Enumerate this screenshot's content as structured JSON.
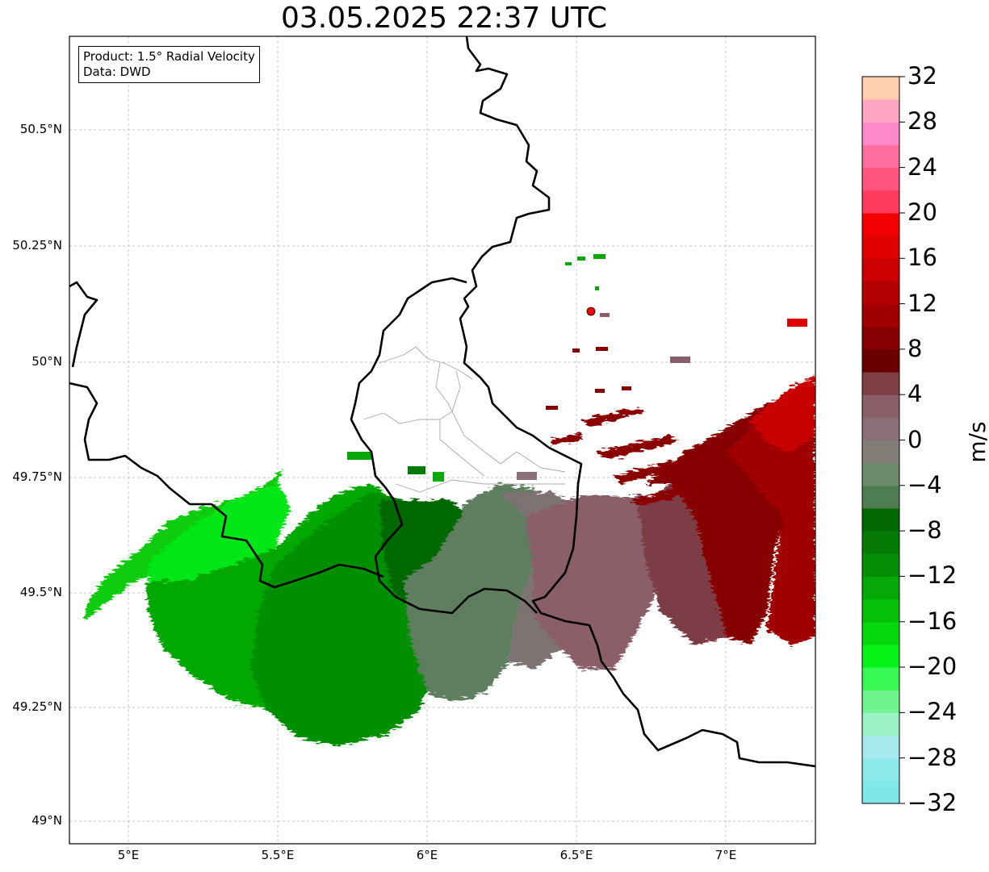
{
  "title": "03.05.2025 22:37 UTC",
  "info": {
    "product": "Product: 1.5° Radial Velocity",
    "source": "Data: DWD"
  },
  "map": {
    "lat_ticks": [
      {
        "value": 50.5,
        "label": "50.5°N"
      },
      {
        "value": 50.25,
        "label": "50.25°N"
      },
      {
        "value": 50.0,
        "label": "50°N"
      },
      {
        "value": 49.75,
        "label": "49.75°N"
      },
      {
        "value": 49.5,
        "label": "49.5°N"
      },
      {
        "value": 49.25,
        "label": "49.25°N"
      },
      {
        "value": 49.0,
        "label": "49°N"
      }
    ],
    "lon_ticks": [
      {
        "value": 5.0,
        "label": "5°E"
      },
      {
        "value": 5.5,
        "label": "5.5°E"
      },
      {
        "value": 6.0,
        "label": "6°E"
      },
      {
        "value": 6.5,
        "label": "6.5°E"
      },
      {
        "value": 7.0,
        "label": "7°E"
      }
    ],
    "extent": {
      "lon_min": 4.8,
      "lon_max": 7.3,
      "lat_min": 48.95,
      "lat_max": 50.7
    },
    "radar_site": {
      "lon": 6.548,
      "lat": 50.11,
      "color": "#ff0000"
    }
  },
  "colorbar": {
    "unit": "m/s",
    "min": -32,
    "max": 32,
    "tick_labels": [
      "−32",
      "−28",
      "−24",
      "−20",
      "−16",
      "−12",
      "−8",
      "−4",
      "0",
      "4",
      "8",
      "12",
      "16",
      "20",
      "24",
      "28",
      "32"
    ],
    "colors": [
      "#7fe6ea",
      "#8ce9ec",
      "#a6e9ee",
      "#9ef2c8",
      "#6ef58f",
      "#38f954",
      "#05f316",
      "#05d80c",
      "#05c006",
      "#05a806",
      "#048f06",
      "#057a05",
      "#036803",
      "#4f7d52",
      "#6b8a6c",
      "#837d78",
      "#8b6f77",
      "#8a5f69",
      "#7d3e46",
      "#6a0000",
      "#870000",
      "#a00000",
      "#b50000",
      "#cc0000",
      "#e00000",
      "#f40000",
      "#fe3b5c",
      "#fe5580",
      "#fe6f9d",
      "#fe88cc",
      "#fea4c4",
      "#ffcfb0"
    ]
  }
}
